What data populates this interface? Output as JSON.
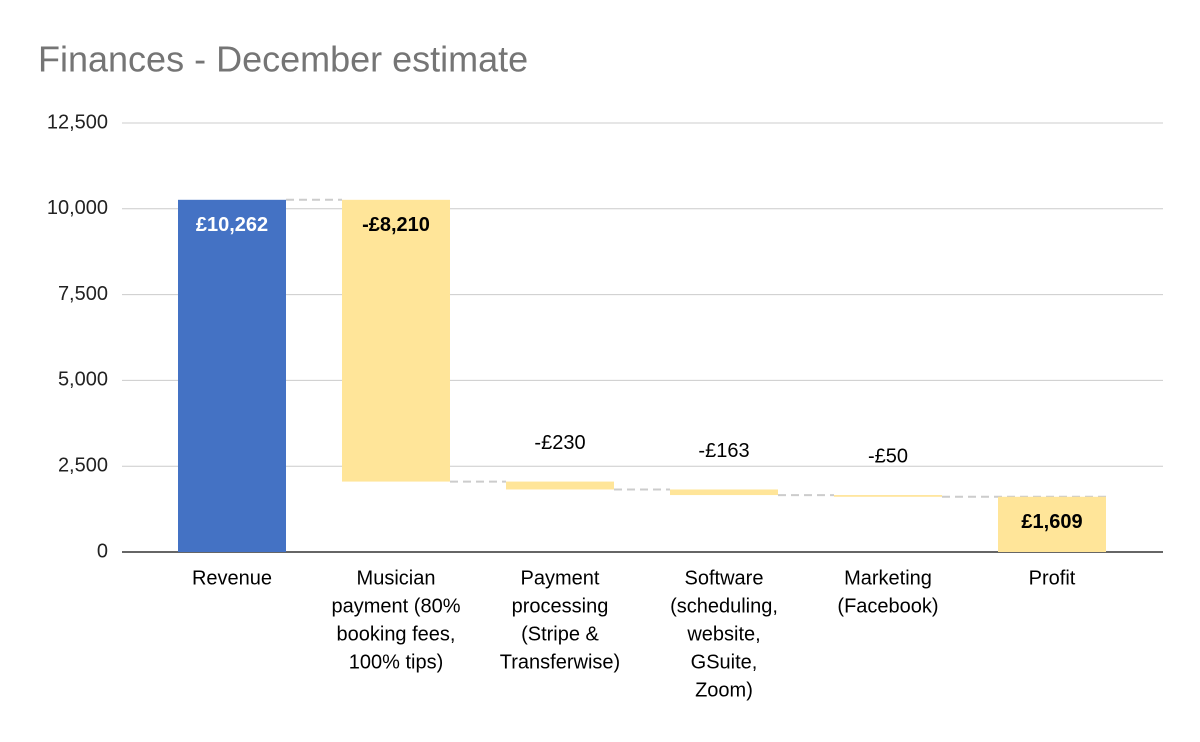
{
  "chart_data": {
    "type": "waterfall",
    "title": "Finances - December estimate",
    "categories": [
      [
        "Revenue"
      ],
      [
        "Musician",
        "payment (80%",
        "booking fees,",
        "100% tips)"
      ],
      [
        "Payment",
        "processing",
        "(Stripe &",
        "Transferwise)"
      ],
      [
        "Software",
        "(scheduling,",
        "website,",
        "GSuite,",
        "Zoom)"
      ],
      [
        "Marketing",
        "(Facebook)"
      ],
      [
        "Profit"
      ]
    ],
    "values": [
      10262,
      -8210,
      -230,
      -163,
      -50,
      1609
    ],
    "value_labels": [
      "£10,262",
      "-£8,210",
      "-£230",
      "-£163",
      "-£50",
      "£1,609"
    ],
    "total": [
      false,
      false,
      false,
      false,
      false,
      true
    ],
    "colors": [
      "#4472c4",
      "#ffe599",
      "#ffe599",
      "#ffe599",
      "#ffe599",
      "#ffe599"
    ],
    "ylim": [
      0,
      12500
    ],
    "yticks": [
      0,
      {
        "value": 2500,
        "label": "2,500"
      },
      {
        "value": 5000,
        "label": "5,000"
      },
      {
        "value": 7500,
        "label": "7,500"
      },
      {
        "value": 10000,
        "label": "10,000"
      },
      {
        "value": 12500,
        "label": "12,500"
      }
    ],
    "grid": true
  }
}
